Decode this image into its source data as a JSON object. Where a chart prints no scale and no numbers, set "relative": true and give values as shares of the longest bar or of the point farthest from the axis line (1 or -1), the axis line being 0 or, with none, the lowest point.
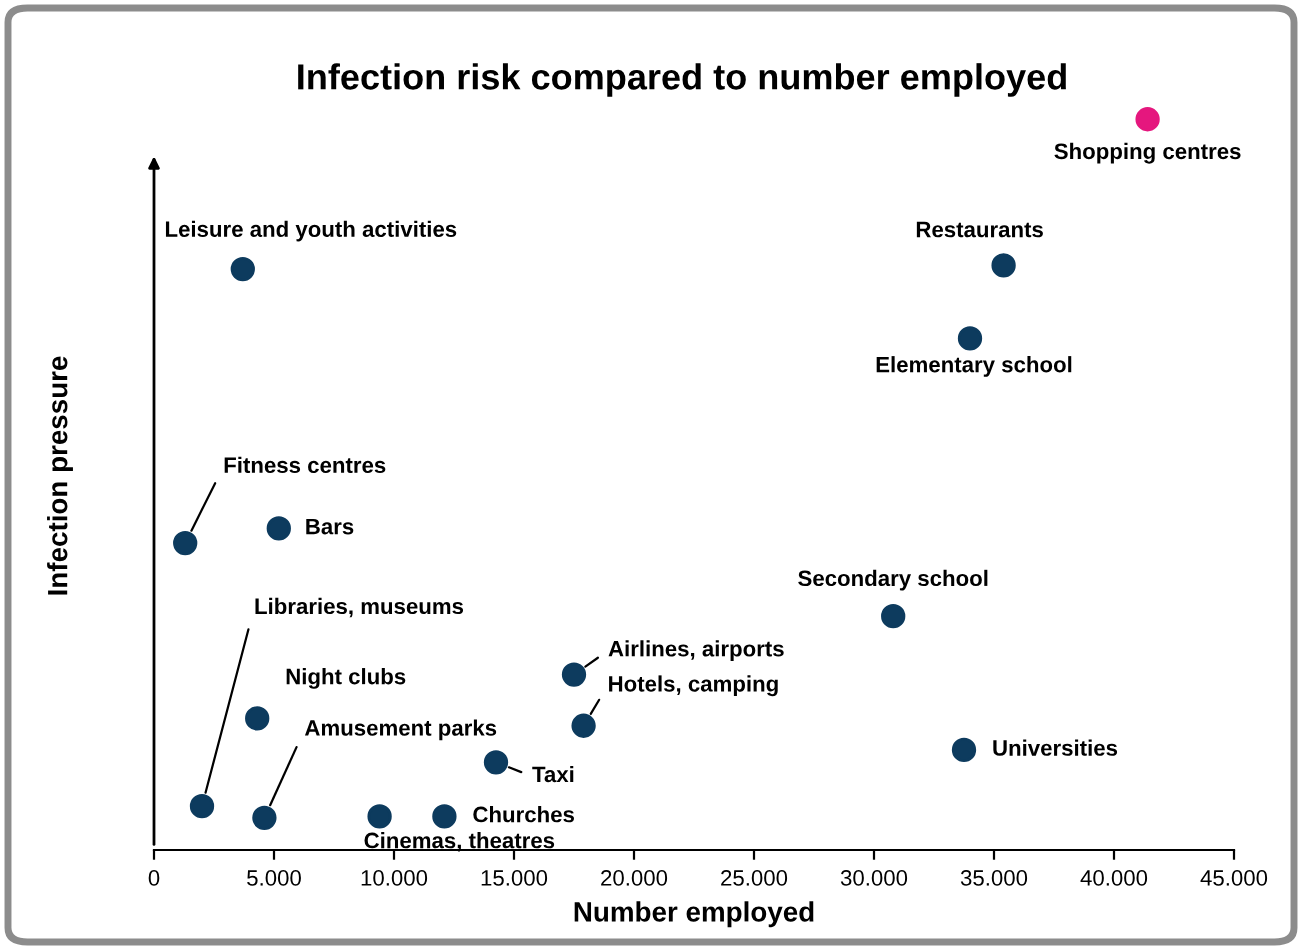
{
  "chart_data": {
    "type": "scatter",
    "title": "Infection risk compared to number employed",
    "xlabel": "Number employed",
    "ylabel": "Infection pressure",
    "relative": true,
    "x": [
      41400,
      35400,
      34000,
      3700,
      1300,
      5200,
      30800,
      17500,
      17900,
      4300,
      33750,
      14250,
      2000,
      4600,
      9400,
      12100
    ],
    "series": [
      {
        "colors": [
          "#e5177e",
          "#0d3b5e",
          "#0d3b5e",
          "#0d3b5e",
          "#0d3b5e",
          "#0d3b5e",
          "#0d3b5e",
          "#0d3b5e",
          "#0d3b5e",
          "#0d3b5e",
          "#0d3b5e",
          "#0d3b5e",
          "#0d3b5e",
          "#0d3b5e",
          "#0d3b5e",
          "#0d3b5e"
        ],
        "values": [
          1.0,
          0.8,
          0.7,
          0.795,
          0.42,
          0.44,
          0.32,
          0.24,
          0.17,
          0.18,
          0.137,
          0.12,
          0.06,
          0.044,
          0.046,
          0.046
        ]
      }
    ],
    "annotations": [
      {
        "text": "Shopping centres",
        "x": 41400,
        "y": 1.0
      },
      {
        "text": "Restaurants",
        "x": 35400,
        "y": 0.8
      },
      {
        "text": "Elementary school",
        "x": 34000,
        "y": 0.7
      },
      {
        "text": "Leisure and youth activities",
        "x": 3700,
        "y": 0.795
      },
      {
        "text": "Fitness centres",
        "x": 1300,
        "y": 0.42
      },
      {
        "text": "Bars",
        "x": 5200,
        "y": 0.44
      },
      {
        "text": "Secondary school",
        "x": 30800,
        "y": 0.32
      },
      {
        "text": "Airlines, airports",
        "x": 17500,
        "y": 0.24
      },
      {
        "text": "Hotels, camping",
        "x": 17900,
        "y": 0.17
      },
      {
        "text": "Night clubs",
        "x": 4300,
        "y": 0.18
      },
      {
        "text": "Universities",
        "x": 33750,
        "y": 0.137
      },
      {
        "text": "Taxi",
        "x": 14250,
        "y": 0.12
      },
      {
        "text": "Libraries, museums",
        "x": 2000,
        "y": 0.06
      },
      {
        "text": "Amusement parks",
        "x": 4600,
        "y": 0.044
      },
      {
        "text": "Cinemas, theatres",
        "x": 9400,
        "y": 0.046
      },
      {
        "text": "Churches",
        "x": 12100,
        "y": 0.046
      }
    ],
    "xlim": [
      0,
      45000
    ],
    "xticks": [
      0,
      {
        "value": 5000,
        "label": "5.000"
      },
      {
        "value": 10000,
        "label": "10.000"
      },
      {
        "value": 15000,
        "label": "15.000"
      },
      {
        "value": 20000,
        "label": "20.000"
      },
      {
        "value": 25000,
        "label": "25.000"
      },
      {
        "value": 30000,
        "label": "30.000"
      },
      {
        "value": 35000,
        "label": "35.000"
      },
      {
        "value": 40000,
        "label": "40.000"
      },
      {
        "value": 45000,
        "label": "45.000"
      }
    ],
    "marker": "circle",
    "grid": false,
    "legend": false
  }
}
